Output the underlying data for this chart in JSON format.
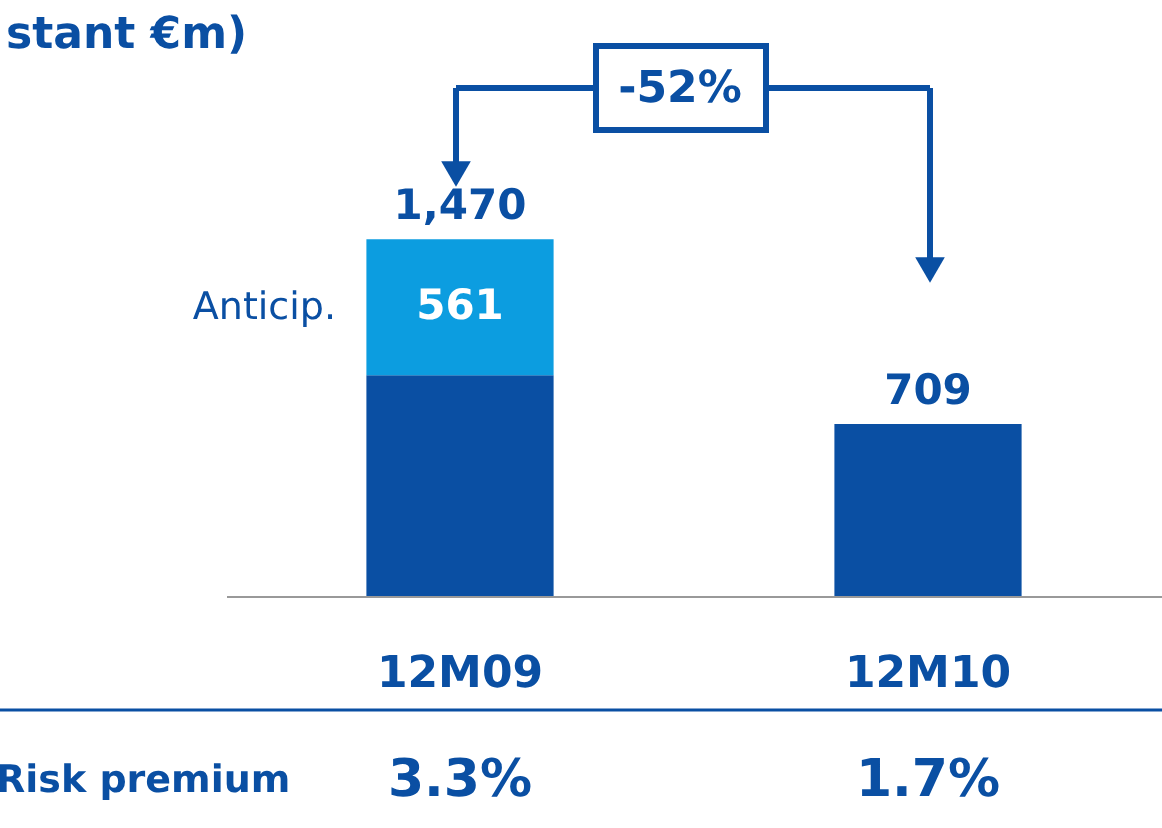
{
  "chart_data": {
    "type": "bar",
    "title": "stant €m)",
    "stacked": true,
    "categories": [
      "12M09",
      "12M10"
    ],
    "series": [
      {
        "color": "#0a4fa3",
        "values": [
          909,
          709
        ]
      },
      {
        "name": "Anticip.",
        "color": "#0c9de0",
        "values": [
          561,
          null
        ],
        "value_labels": [
          "561",
          null
        ]
      }
    ],
    "totals": [
      "1,470",
      "709"
    ],
    "annotations": [
      "-52%",
      "Risk premium",
      "3.3%",
      "1.7%"
    ]
  }
}
